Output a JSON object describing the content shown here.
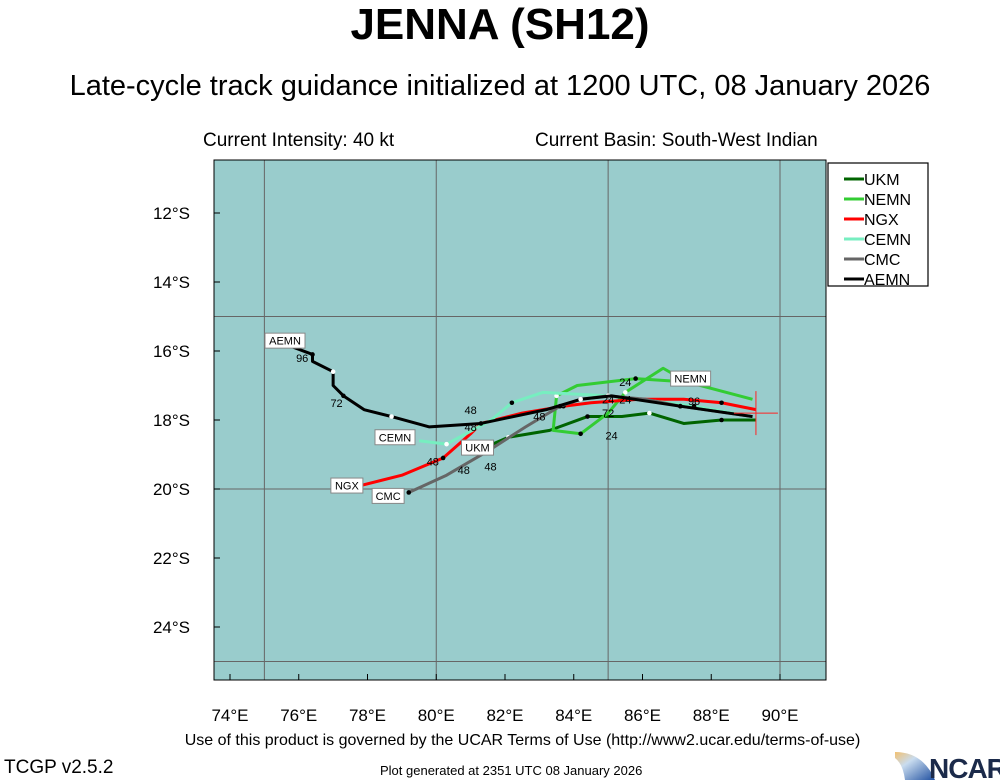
{
  "header": {
    "title": "JENNA (SH12)",
    "subtitle": "Late-cycle track guidance initialized at 1200 UTC, 08 January 2026",
    "intensity": "Current Intensity: 40 kt",
    "basin": "Current Basin: South-West Indian"
  },
  "footer": {
    "terms": "Use of this product is governed by the UCAR Terms of Use (http://www2.ucar.edu/terms-of-use)",
    "version": "TCGP v2.5.2",
    "generated": "Plot generated at 2351 UTC   08 January 2026",
    "logo_text": "NCAR"
  },
  "map": {
    "background": "#99cccc",
    "lon_ticks": [
      "74°E",
      "76°E",
      "78°E",
      "80°E",
      "82°E",
      "84°E",
      "86°E",
      "88°E",
      "90°E"
    ],
    "lat_ticks": [
      "12°S",
      "14°S",
      "16°S",
      "18°S",
      "20°S",
      "22°S",
      "24°S"
    ],
    "lon_range": [
      73.5,
      91.3
    ],
    "lat_range": [
      10.5,
      25.6
    ],
    "current_position": [
      89.3,
      17.8
    ]
  },
  "legend": [
    {
      "name": "UKM",
      "color": "#006400"
    },
    {
      "name": "NEMN",
      "color": "#33cc33"
    },
    {
      "name": "NGX",
      "color": "#ff0000"
    },
    {
      "name": "CEMN",
      "color": "#77eec0"
    },
    {
      "name": "CMC",
      "color": "#666666"
    },
    {
      "name": "AEMN",
      "color": "#000000"
    }
  ],
  "tracks": [
    {
      "name": "UKM",
      "color": "#006400",
      "label_at": [
        81.2,
        18.8
      ],
      "points": [
        [
          89.3,
          18.0
        ],
        [
          88.3,
          18.0
        ],
        [
          87.2,
          18.1
        ],
        [
          86.2,
          17.8
        ],
        [
          85.4,
          17.9
        ],
        [
          84.4,
          17.9
        ],
        [
          83.3,
          18.3
        ],
        [
          82.1,
          18.5
        ],
        [
          81.4,
          18.8
        ],
        [
          81.0,
          18.9
        ]
      ]
    },
    {
      "name": "NEMN",
      "color": "#33cc33",
      "label_at": [
        87.4,
        16.8
      ],
      "points": [
        [
          89.2,
          17.4
        ],
        [
          87.3,
          16.9
        ],
        [
          86.6,
          16.5
        ],
        [
          85.5,
          17.2
        ],
        [
          85.0,
          17.8
        ],
        [
          84.2,
          18.4
        ],
        [
          83.4,
          18.3
        ],
        [
          83.5,
          17.3
        ],
        [
          84.1,
          17.0
        ],
        [
          85.8,
          16.8
        ],
        [
          87.3,
          16.9
        ]
      ]
    },
    {
      "name": "NGX",
      "color": "#ff0000",
      "label_at": [
        77.4,
        19.9
      ],
      "points": [
        [
          89.3,
          17.7
        ],
        [
          88.3,
          17.5
        ],
        [
          87.2,
          17.4
        ],
        [
          85.9,
          17.4
        ],
        [
          84.5,
          17.5
        ],
        [
          83.7,
          17.6
        ],
        [
          82.5,
          17.8
        ],
        [
          81.3,
          18.1
        ],
        [
          81.0,
          18.4
        ],
        [
          80.2,
          19.1
        ],
        [
          79.0,
          19.6
        ],
        [
          77.8,
          19.9
        ]
      ]
    },
    {
      "name": "CEMN",
      "color": "#77eec0",
      "label_at": [
        78.8,
        18.5
      ],
      "points": [
        [
          89.2,
          17.9
        ],
        [
          87.5,
          17.6
        ],
        [
          85.9,
          17.4
        ],
        [
          85.0,
          17.3
        ],
        [
          83.1,
          17.2
        ],
        [
          82.2,
          17.5
        ],
        [
          81.6,
          18.0
        ],
        [
          80.3,
          18.7
        ],
        [
          79.5,
          18.6
        ]
      ]
    },
    {
      "name": "CMC",
      "color": "#666666",
      "label_at": [
        78.6,
        20.2
      ],
      "points": [
        [
          89.2,
          17.9
        ],
        [
          87.1,
          17.6
        ],
        [
          86.1,
          17.4
        ],
        [
          85.0,
          17.3
        ],
        [
          84.2,
          17.4
        ],
        [
          83.6,
          17.6
        ],
        [
          82.6,
          18.2
        ],
        [
          81.5,
          18.9
        ],
        [
          80.3,
          19.6
        ],
        [
          79.2,
          20.1
        ]
      ]
    },
    {
      "name": "AEMN",
      "color": "#000000",
      "label_at": [
        75.6,
        15.7
      ],
      "points": [
        [
          89.2,
          17.9
        ],
        [
          87.1,
          17.6
        ],
        [
          85.1,
          17.3
        ],
        [
          84.2,
          17.4
        ],
        [
          83.2,
          17.7
        ],
        [
          81.3,
          18.1
        ],
        [
          79.8,
          18.2
        ],
        [
          78.7,
          17.9
        ],
        [
          77.9,
          17.7
        ],
        [
          77.3,
          17.3
        ],
        [
          77.0,
          17.0
        ],
        [
          77.0,
          16.6
        ],
        [
          76.4,
          16.3
        ],
        [
          76.4,
          16.1
        ],
        [
          75.6,
          15.8
        ]
      ]
    }
  ],
  "hour_labels": [
    {
      "text": "96",
      "at": [
        76.1,
        16.2
      ]
    },
    {
      "text": "72",
      "at": [
        77.1,
        17.5
      ]
    },
    {
      "text": "48",
      "at": [
        81.0,
        18.2
      ]
    },
    {
      "text": "48",
      "at": [
        81.0,
        18.4
      ]
    },
    {
      "text": "48",
      "at": [
        83.0,
        17.9
      ]
    },
    {
      "text": "48",
      "at": [
        79.9,
        19.2
      ]
    },
    {
      "text": "48",
      "at": [
        80.8,
        19.1
      ]
    },
    {
      "text": "48",
      "at": [
        81.2,
        19.0
      ]
    },
    {
      "text": "24",
      "at": [
        85.5,
        16.9
      ]
    },
    {
      "text": "24",
      "at": [
        85.5,
        17.4
      ]
    },
    {
      "text": "24",
      "at": [
        85.0,
        17.4
      ]
    },
    {
      "text": "72",
      "at": [
        85.0,
        17.8
      ]
    },
    {
      "text": "24",
      "at": [
        85.1,
        18.1
      ]
    },
    {
      "text": "96",
      "at": [
        87.5,
        17.1
      ]
    }
  ]
}
